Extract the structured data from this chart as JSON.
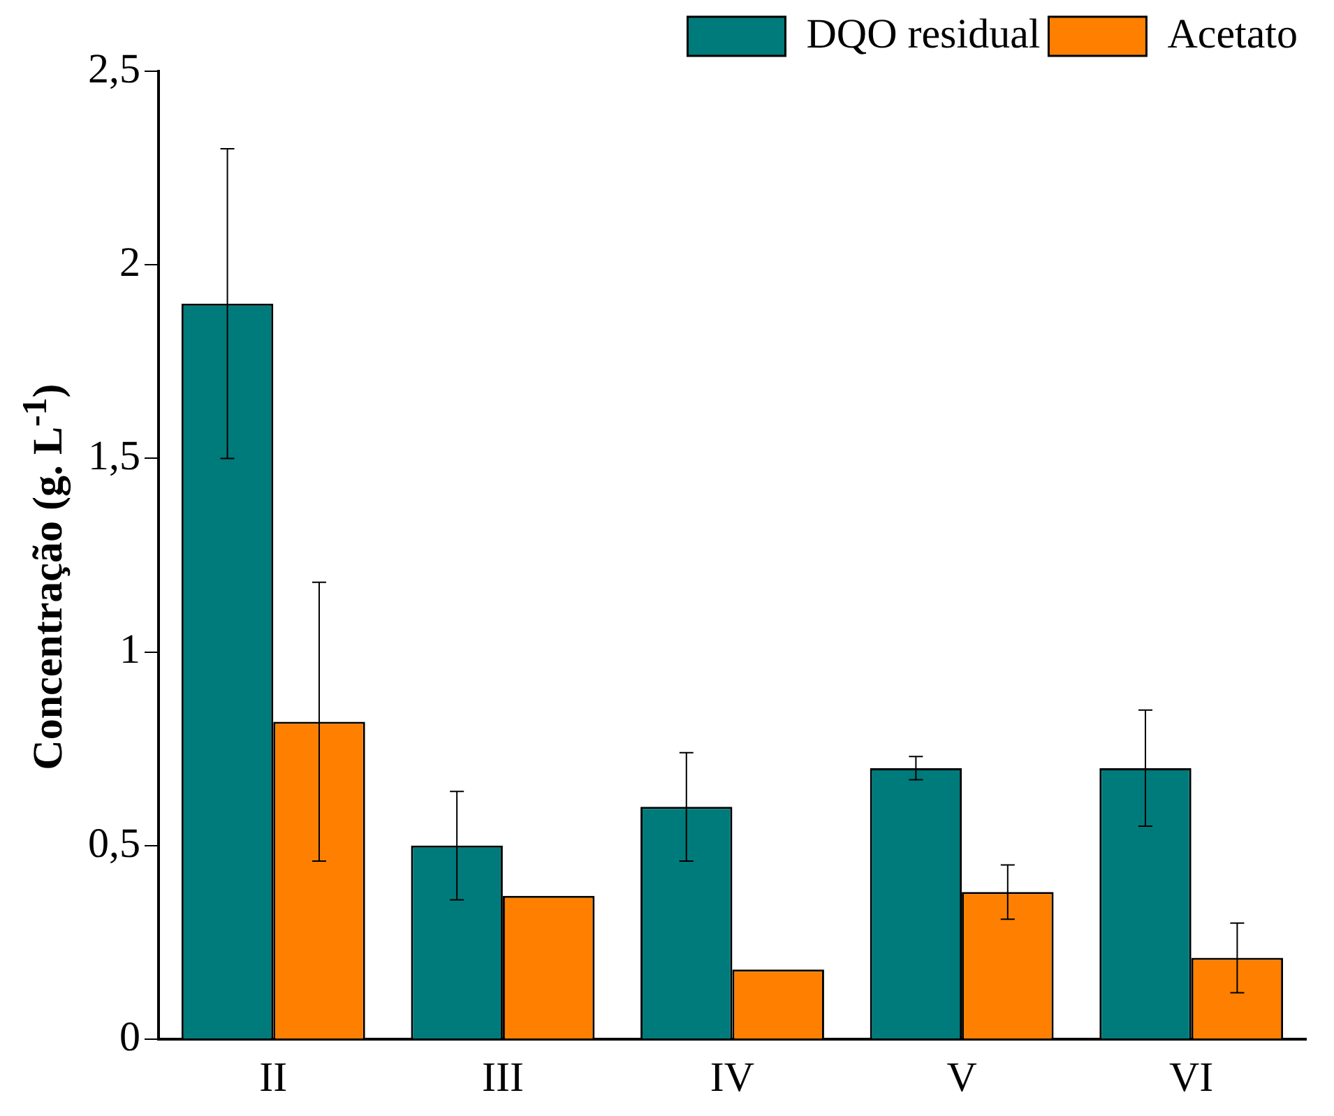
{
  "chart_data": {
    "type": "bar",
    "ylabel": "Concentração (g. L$^{-1}$)",
    "categories": [
      "II",
      "III",
      "IV",
      "V",
      "VI"
    ],
    "series": [
      {
        "name": "DQO residual",
        "color": "#007b7b",
        "values": [
          1.9,
          0.5,
          0.6,
          0.7,
          0.7
        ],
        "errors": [
          0.4,
          0.14,
          0.14,
          0.03,
          0.15
        ]
      },
      {
        "name": "Acetato",
        "color": "#ff8000",
        "values": [
          0.82,
          0.37,
          0.18,
          0.38,
          0.21
        ],
        "errors": [
          0.36,
          null,
          null,
          0.07,
          0.09
        ]
      }
    ],
    "ylim": [
      0,
      2.5
    ],
    "yticks": [
      0,
      {
        "value": 0.5,
        "label": "0,5"
      },
      1,
      {
        "value": 1.5,
        "label": "1,5"
      },
      2,
      {
        "value": 2.5,
        "label": "2,5"
      }
    ],
    "legend": "top right"
  }
}
